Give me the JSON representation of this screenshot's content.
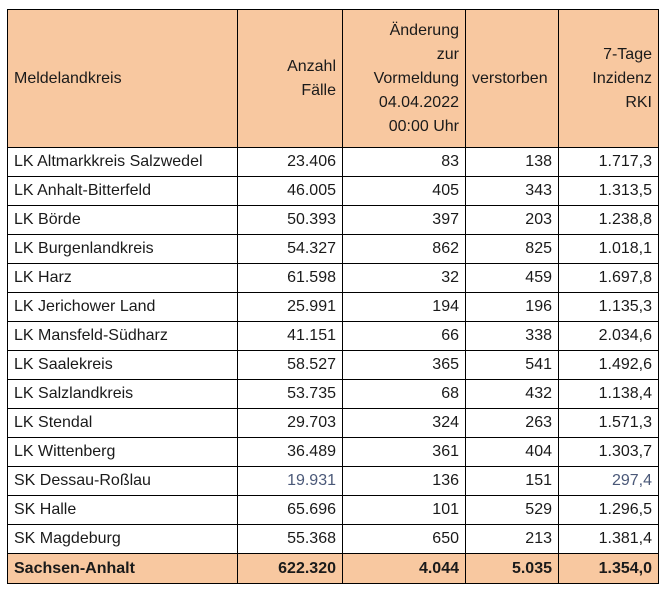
{
  "header": {
    "col1": [
      "Meldelandkreis"
    ],
    "col2": [
      "Anzahl",
      "Fälle"
    ],
    "col3": [
      "Änderung",
      "zur",
      "Vormeldung",
      "04.04.2022",
      "00:00 Uhr"
    ],
    "col4": [
      "verstorben"
    ],
    "col5": [
      "7-Tage",
      "Inzidenz",
      "RKI"
    ]
  },
  "rows": [
    {
      "name": "LK Altmarkkreis Salzwedel",
      "faelle": "23.406",
      "aenderung": "83",
      "verstorben": "138",
      "inzidenz": "1.717,3"
    },
    {
      "name": "LK Anhalt-Bitterfeld",
      "faelle": "46.005",
      "aenderung": "405",
      "verstorben": "343",
      "inzidenz": "1.313,5"
    },
    {
      "name": "LK Börde",
      "faelle": "50.393",
      "aenderung": "397",
      "verstorben": "203",
      "inzidenz": "1.238,8"
    },
    {
      "name": "LK Burgenlandkreis",
      "faelle": "54.327",
      "aenderung": "862",
      "verstorben": "825",
      "inzidenz": "1.018,1"
    },
    {
      "name": "LK Harz",
      "faelle": "61.598",
      "aenderung": "32",
      "verstorben": "459",
      "inzidenz": "1.697,8"
    },
    {
      "name": "LK Jerichower Land",
      "faelle": "25.991",
      "aenderung": "194",
      "verstorben": "196",
      "inzidenz": "1.135,3"
    },
    {
      "name": "LK Mansfeld-Südharz",
      "faelle": "41.151",
      "aenderung": "66",
      "verstorben": "338",
      "inzidenz": "2.034,6"
    },
    {
      "name": "LK Saalekreis",
      "faelle": "58.527",
      "aenderung": "365",
      "verstorben": "541",
      "inzidenz": "1.492,6"
    },
    {
      "name": "LK Salzlandkreis",
      "faelle": "53.735",
      "aenderung": "68",
      "verstorben": "432",
      "inzidenz": "1.138,4"
    },
    {
      "name": "LK Stendal",
      "faelle": "29.703",
      "aenderung": "324",
      "verstorben": "263",
      "inzidenz": "1.571,3"
    },
    {
      "name": "LK Wittenberg",
      "faelle": "36.489",
      "aenderung": "361",
      "verstorben": "404",
      "inzidenz": "1.303,7"
    },
    {
      "name": "SK Dessau-Roßlau",
      "faelle": "19.931",
      "aenderung": "136",
      "verstorben": "151",
      "inzidenz": "297,4"
    },
    {
      "name": "SK Halle",
      "faelle": "65.696",
      "aenderung": "101",
      "verstorben": "529",
      "inzidenz": "1.296,5"
    },
    {
      "name": "SK Magdeburg",
      "faelle": "55.368",
      "aenderung": "650",
      "verstorben": "213",
      "inzidenz": "1.381,4"
    }
  ],
  "total": {
    "name": "Sachsen-Anhalt",
    "faelle": "622.320",
    "aenderung": "4.044",
    "verstorben": "5.035",
    "inzidenz": "1.354,0"
  },
  "colors": {
    "header_bg": "#f8c8a0",
    "border": "#000000",
    "muted_text": "#4a5878"
  }
}
